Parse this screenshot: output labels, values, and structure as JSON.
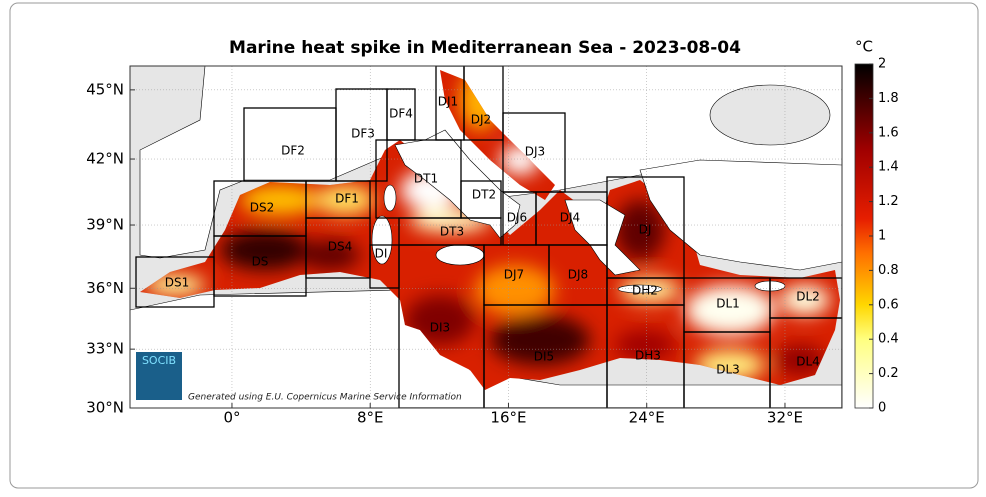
{
  "title": "Marine heat spike in Mediterranean Sea - 2023-08-04",
  "map": {
    "xlim": [
      -5.9,
      35.3
    ],
    "ylim": [
      30,
      46
    ],
    "xticks": [
      {
        "value": 0,
        "label": "0°"
      },
      {
        "value": 8,
        "label": "8°E"
      },
      {
        "value": 16,
        "label": "16°E"
      },
      {
        "value": 24,
        "label": "24°E"
      },
      {
        "value": 32,
        "label": "32°E"
      }
    ],
    "yticks": [
      {
        "value": 30,
        "label": "30°N"
      },
      {
        "value": 33,
        "label": "33°N"
      },
      {
        "value": 36,
        "label": "36°N"
      },
      {
        "value": 39,
        "label": "39°N"
      },
      {
        "value": 42,
        "label": "42°N"
      },
      {
        "value": 45,
        "label": "45°N"
      }
    ],
    "regions": [
      {
        "label": "DS1"
      },
      {
        "label": "DS2"
      },
      {
        "label": "DS"
      },
      {
        "label": "DS4"
      },
      {
        "label": "DF1"
      },
      {
        "label": "DF2"
      },
      {
        "label": "DF3"
      },
      {
        "label": "DF4"
      },
      {
        "label": "DT1"
      },
      {
        "label": "DT2"
      },
      {
        "label": "DT3"
      },
      {
        "label": "DI"
      },
      {
        "label": "DJ1"
      },
      {
        "label": "DJ2"
      },
      {
        "label": "DJ3"
      },
      {
        "label": "DJ6"
      },
      {
        "label": "DJ4"
      },
      {
        "label": "DJ"
      },
      {
        "label": "DJ7"
      },
      {
        "label": "DJ8"
      },
      {
        "label": "DH2"
      },
      {
        "label": "DL1"
      },
      {
        "label": "DL2"
      },
      {
        "label": "DI3"
      },
      {
        "label": "DI5"
      },
      {
        "label": "DH3"
      },
      {
        "label": "DL3"
      },
      {
        "label": "DL4"
      }
    ]
  },
  "colorbar": {
    "unit": "°C",
    "lim": [
      0,
      2
    ],
    "ticks": [
      0,
      0.2,
      0.4,
      0.6,
      0.8,
      1,
      1.2,
      1.4,
      1.6,
      1.8,
      2
    ]
  },
  "logo": "SOCIB",
  "credit": "Generated using E.U. Copernicus Marine Service Information"
}
